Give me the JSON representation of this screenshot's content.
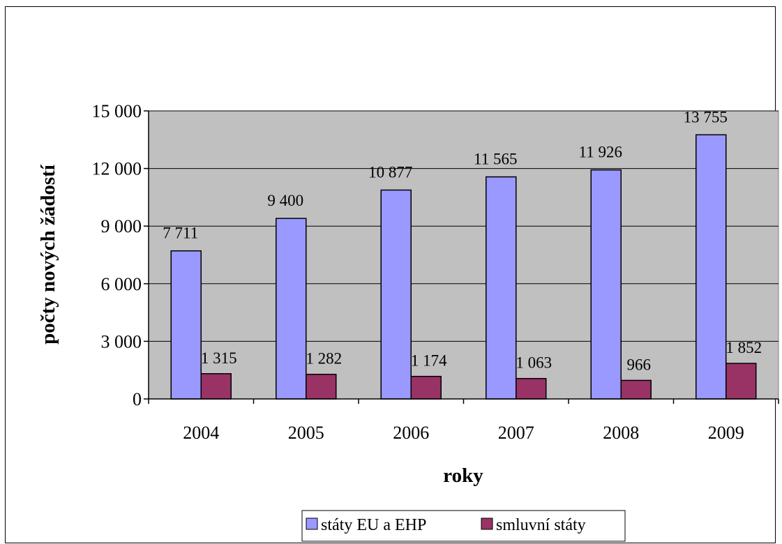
{
  "chart_data": {
    "type": "bar",
    "title": "",
    "xlabel": "roky",
    "ylabel": "počty nových žádostí",
    "categories": [
      "2004",
      "2005",
      "2006",
      "2007",
      "2008",
      "2009"
    ],
    "series": [
      {
        "name": "státy EU a EHP",
        "values": [
          7711,
          9400,
          10877,
          11565,
          11926,
          13755
        ],
        "labels": [
          "7 711",
          "9 400",
          "10 877",
          "11 565",
          "11 926",
          "13 755"
        ],
        "color": "#9999ff"
      },
      {
        "name": "smluvní státy",
        "values": [
          1315,
          1282,
          1174,
          1063,
          966,
          1852
        ],
        "labels": [
          "1 315",
          "1 282",
          "1 174",
          "1 063",
          "966",
          "1 852"
        ],
        "color": "#993366"
      }
    ],
    "ylim": [
      0,
      15000
    ],
    "yticks": [
      0,
      3000,
      6000,
      9000,
      12000,
      15000
    ],
    "ytick_labels": [
      "0",
      "3 000",
      "6 000",
      "9 000",
      "12 000",
      "15 000"
    ],
    "grid": true,
    "plot_background": "#c0c0c0",
    "legend_position": "bottom"
  }
}
